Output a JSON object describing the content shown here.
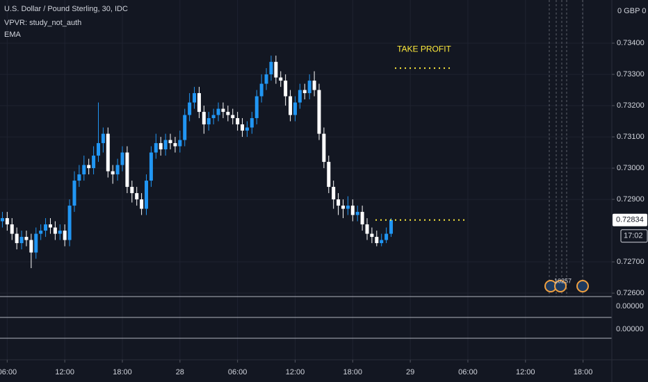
{
  "chart_data": {
    "type": "candlestick",
    "title": "U.S. Dollar / Pound Sterling, 30, IDC",
    "indicators": [
      "VPVR: study_not_auth",
      "EMA"
    ],
    "axis_header": "0 GBP 0",
    "xlim": [
      -0.5,
      127
    ],
    "xticks": [
      {
        "value": 1,
        "label": "06:00"
      },
      {
        "value": 13,
        "label": "12:00"
      },
      {
        "value": 25,
        "label": "18:00"
      },
      {
        "value": 37,
        "label": "28"
      },
      {
        "value": 49,
        "label": "06:00"
      },
      {
        "value": 61,
        "label": "12:00"
      },
      {
        "value": 73,
        "label": "18:00"
      },
      {
        "value": 85,
        "label": "29"
      },
      {
        "value": 97,
        "label": "06:00"
      },
      {
        "value": 109,
        "label": "12:00"
      },
      {
        "value": 121,
        "label": "18:00"
      }
    ],
    "ylim": [
      0.72589,
      0.73538
    ],
    "yticks": [
      {
        "value": 0.726,
        "label": "0.72600"
      },
      {
        "value": 0.727,
        "label": "0.72700"
      },
      {
        "value": 0.729,
        "label": "0.72900"
      },
      {
        "value": 0.73,
        "label": "0.73000"
      },
      {
        "value": 0.731,
        "label": "0.73100"
      },
      {
        "value": 0.732,
        "label": "0.73200"
      },
      {
        "value": 0.733,
        "label": "0.73300"
      },
      {
        "value": 0.734,
        "label": "0.73400"
      }
    ],
    "grid": true,
    "up_color": "#2196f3",
    "down_color": "#ffffff",
    "series": [
      {
        "open": [
          0.7283,
          0.7284,
          0.7282,
          0.7279,
          0.7276,
          0.7278,
          0.7277,
          0.7273,
          0.7279,
          0.728,
          0.7282,
          0.7281,
          0.7279,
          0.728,
          0.7277,
          0.7288,
          0.7296,
          0.7298,
          0.7301,
          0.73,
          0.7304,
          0.7308,
          0.7311,
          0.7299,
          0.7298,
          0.7301,
          0.7305,
          0.7294,
          0.7292,
          0.729,
          0.7287,
          0.7296,
          0.7305,
          0.7308,
          0.7306,
          0.7309,
          0.7308,
          0.7307,
          0.7309,
          0.7317,
          0.7321,
          0.7324,
          0.7318,
          0.7314,
          0.7316,
          0.7317,
          0.7319,
          0.7318,
          0.7317,
          0.7316,
          0.7314,
          0.7312,
          0.7313,
          0.7316,
          0.7323,
          0.7327,
          0.733,
          0.7334,
          0.7329,
          0.7328,
          0.7323,
          0.7317,
          0.7321,
          0.7325,
          0.7324,
          0.7328,
          0.7325,
          0.7311,
          0.7302,
          0.7294,
          0.729,
          0.7288,
          0.7287,
          0.7288,
          0.7285,
          0.7286,
          0.7282,
          0.7279,
          0.7278,
          0.7276,
          0.7277,
          0.7279
        ],
        "high": [
          0.7286,
          0.7286,
          0.7284,
          0.7281,
          0.728,
          0.728,
          0.7279,
          0.7281,
          0.7282,
          0.7284,
          0.7284,
          0.7283,
          0.7282,
          0.7282,
          0.729,
          0.7299,
          0.7301,
          0.7304,
          0.7303,
          0.7307,
          0.7321,
          0.7313,
          0.7313,
          0.7301,
          0.7303,
          0.7307,
          0.7307,
          0.7296,
          0.7294,
          0.7292,
          0.7298,
          0.7307,
          0.7311,
          0.731,
          0.7311,
          0.7311,
          0.731,
          0.7312,
          0.7319,
          0.7324,
          0.7326,
          0.7326,
          0.732,
          0.7318,
          0.7319,
          0.7321,
          0.7321,
          0.732,
          0.7319,
          0.7318,
          0.7316,
          0.7315,
          0.7318,
          0.7325,
          0.733,
          0.7332,
          0.7336,
          0.7336,
          0.7331,
          0.733,
          0.7325,
          0.7323,
          0.7327,
          0.7327,
          0.733,
          0.7331,
          0.7327,
          0.7313,
          0.7304,
          0.7296,
          0.7292,
          0.729,
          0.7291,
          0.729,
          0.7288,
          0.7288,
          0.7284,
          0.7281,
          0.728,
          0.7279,
          0.7281,
          0.7284
        ],
        "low": [
          0.7281,
          0.728,
          0.7277,
          0.7274,
          0.7274,
          0.7275,
          0.7268,
          0.7271,
          0.7277,
          0.7278,
          0.7279,
          0.7277,
          0.7277,
          0.7275,
          0.7275,
          0.7286,
          0.7294,
          0.7296,
          0.7298,
          0.7298,
          0.7302,
          0.7305,
          0.7297,
          0.7295,
          0.7296,
          0.7299,
          0.7292,
          0.7289,
          0.7288,
          0.7285,
          0.7285,
          0.7294,
          0.7303,
          0.7304,
          0.7304,
          0.7306,
          0.7305,
          0.7305,
          0.7307,
          0.7315,
          0.7319,
          0.7316,
          0.7311,
          0.7312,
          0.7314,
          0.7315,
          0.7316,
          0.7315,
          0.7314,
          0.7312,
          0.731,
          0.731,
          0.7311,
          0.7314,
          0.7321,
          0.7325,
          0.7328,
          0.7327,
          0.7326,
          0.732,
          0.7315,
          0.7315,
          0.7319,
          0.7322,
          0.7322,
          0.7323,
          0.7309,
          0.73,
          0.7292,
          0.7287,
          0.7285,
          0.7284,
          0.7285,
          0.7283,
          0.7283,
          0.728,
          0.7277,
          0.7276,
          0.7275,
          0.7275,
          0.7276,
          0.7278
        ],
        "close": [
          0.7284,
          0.7282,
          0.7279,
          0.7276,
          0.7278,
          0.7277,
          0.7273,
          0.7279,
          0.728,
          0.7282,
          0.7281,
          0.7279,
          0.728,
          0.7277,
          0.7288,
          0.7296,
          0.7298,
          0.7301,
          0.73,
          0.7304,
          0.7308,
          0.7311,
          0.7299,
          0.7298,
          0.7301,
          0.7305,
          0.7294,
          0.7292,
          0.729,
          0.7287,
          0.7296,
          0.7305,
          0.7308,
          0.7306,
          0.7309,
          0.7308,
          0.7307,
          0.7309,
          0.7317,
          0.7321,
          0.7324,
          0.7318,
          0.7314,
          0.7316,
          0.7317,
          0.7319,
          0.7318,
          0.7317,
          0.7316,
          0.7314,
          0.7312,
          0.7313,
          0.7316,
          0.7323,
          0.7327,
          0.733,
          0.7334,
          0.7329,
          0.7328,
          0.7323,
          0.7317,
          0.7321,
          0.7325,
          0.7324,
          0.7328,
          0.7325,
          0.7311,
          0.7302,
          0.7294,
          0.729,
          0.7288,
          0.7287,
          0.7288,
          0.7285,
          0.7286,
          0.7282,
          0.7279,
          0.7278,
          0.7276,
          0.7277,
          0.7279,
          0.72834
        ]
      }
    ],
    "price_label": "0.72834",
    "countdown": "17:02",
    "lines": [
      {
        "value": 0.7332,
        "color": "#ffeb3b",
        "label": "TAKE PROFIT"
      },
      {
        "value": 0.72834,
        "color": "#ffeb3b"
      }
    ],
    "event_labels": [
      "102",
      "57"
    ],
    "sub_pane_labels": [
      "0.00000",
      "0.00000"
    ]
  }
}
